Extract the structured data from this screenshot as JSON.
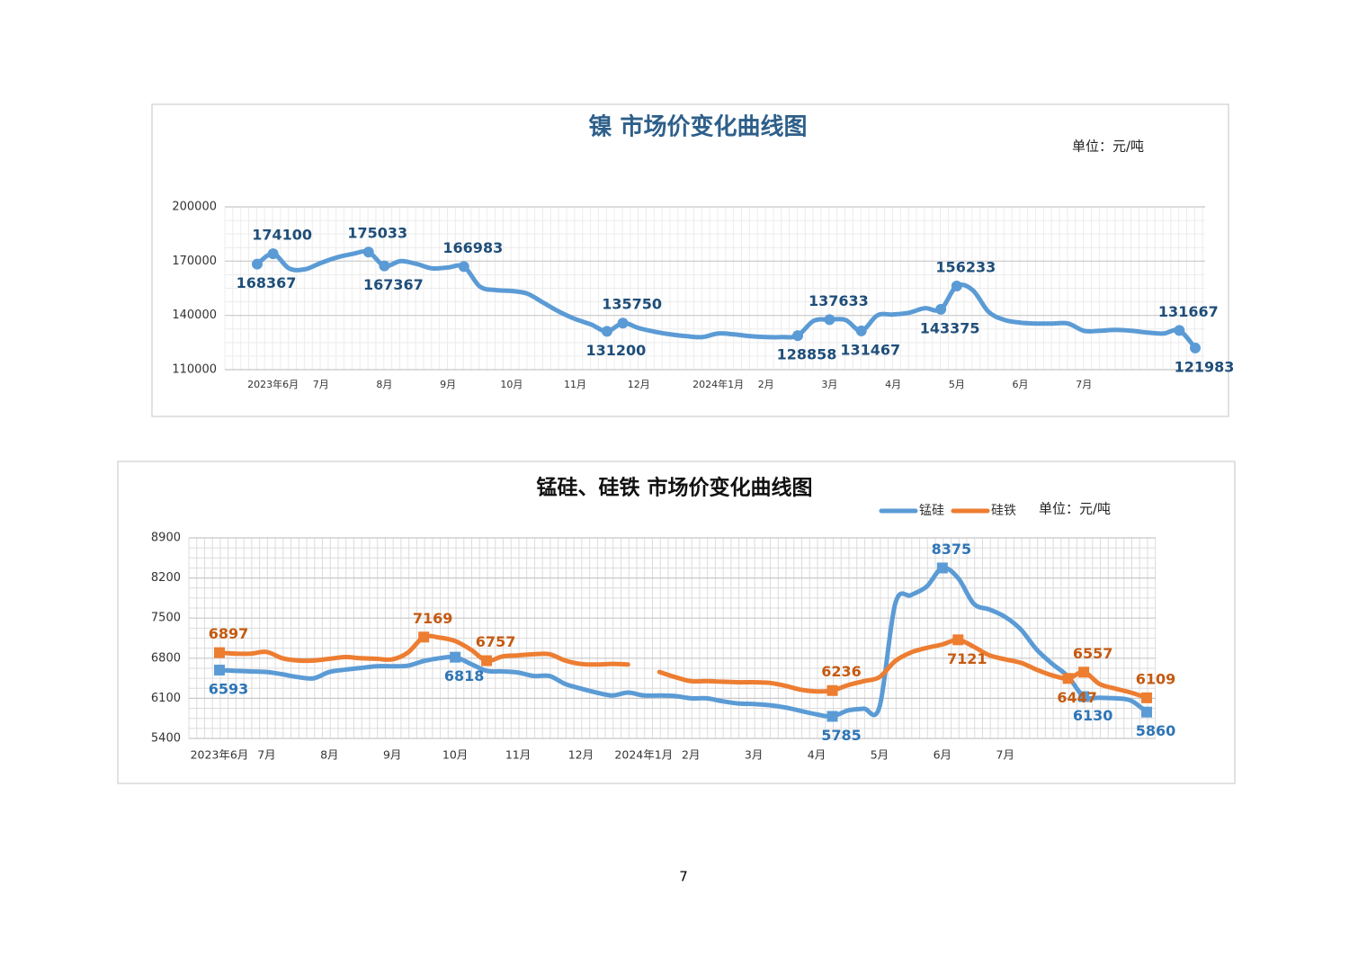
{
  "chart_data": [
    {
      "type": "line",
      "title": "镍  市场价变化曲线图",
      "unit": "单位：元/吨",
      "color": "#5b9bd5",
      "grid": true,
      "ylim": [
        110000,
        200000
      ],
      "yticks": [
        110000,
        140000,
        170000,
        200000
      ],
      "categories": [
        null,
        "2023年6月",
        null,
        null,
        "7月",
        null,
        null,
        null,
        "8月",
        null,
        null,
        null,
        "9月",
        null,
        null,
        null,
        "10月",
        null,
        null,
        null,
        "11月",
        null,
        null,
        null,
        "12月",
        null,
        null,
        null,
        null,
        "2024年1月",
        null,
        null,
        "2月",
        null,
        null,
        null,
        "3月",
        null,
        null,
        null,
        "4月",
        null,
        null,
        null,
        "5月",
        null,
        null,
        null,
        "6月",
        null,
        null,
        null,
        "7月",
        null,
        null,
        null,
        null,
        null,
        null,
        null
      ],
      "values": [
        168367,
        174100,
        166000,
        165500,
        169000,
        172000,
        174000,
        175033,
        167367,
        170000,
        168500,
        166000,
        166500,
        166983,
        156000,
        154000,
        153500,
        152000,
        147000,
        142000,
        138000,
        135000,
        131200,
        135750,
        133000,
        131000,
        129500,
        128500,
        128000,
        130000,
        129500,
        128500,
        128000,
        128000,
        128858,
        137000,
        137633,
        137500,
        131467,
        140000,
        140500,
        141500,
        144000,
        143375,
        156233,
        154000,
        142000,
        137500,
        136000,
        135500,
        135500,
        135500,
        131500,
        131500,
        132000,
        131500,
        130500,
        130000,
        131667,
        121983
      ],
      "value_labels": [
        "168367",
        "174100",
        null,
        null,
        null,
        null,
        null,
        "175033",
        "167367",
        null,
        null,
        null,
        null,
        "166983",
        null,
        null,
        null,
        null,
        null,
        null,
        null,
        null,
        "131200",
        "135750",
        null,
        null,
        null,
        null,
        null,
        null,
        null,
        null,
        null,
        null,
        "128858",
        null,
        "137633",
        null,
        "131467",
        null,
        null,
        null,
        null,
        "143375",
        "156233",
        null,
        null,
        null,
        null,
        null,
        null,
        null,
        null,
        null,
        null,
        null,
        null,
        null,
        "131667",
        "121983"
      ]
    },
    {
      "type": "line",
      "title": "锰硅、硅铁  市场价变化曲线图",
      "unit": "单位：元/吨",
      "grid": true,
      "legend": "top-right",
      "ylim": [
        5400,
        8900
      ],
      "yticks": [
        5400,
        6100,
        6800,
        7500,
        8200,
        8900
      ],
      "categories": [
        "2023年6月",
        null,
        null,
        "7月",
        null,
        null,
        null,
        "8月",
        null,
        null,
        null,
        "9月",
        null,
        null,
        null,
        "10月",
        null,
        null,
        null,
        "11月",
        null,
        null,
        null,
        "12月",
        null,
        null,
        null,
        "2024年1月",
        null,
        null,
        "2月",
        null,
        null,
        null,
        "3月",
        null,
        null,
        null,
        "4月",
        null,
        null,
        null,
        "5月",
        null,
        null,
        null,
        "6月",
        null,
        null,
        null,
        "7月",
        null,
        null,
        null,
        null,
        null,
        null,
        null,
        null,
        null
      ],
      "series": [
        {
          "name": "锰硅",
          "color": "#5b9bd5",
          "label_color": "#2e75b6",
          "values": [
            6593,
            6580,
            6570,
            6560,
            6520,
            6470,
            6450,
            6560,
            6600,
            6630,
            6660,
            6660,
            6670,
            6750,
            6800,
            6818,
            6700,
            6580,
            6570,
            6550,
            6490,
            6490,
            6350,
            6270,
            6200,
            6150,
            6200,
            6150,
            6150,
            6140,
            6100,
            6100,
            6050,
            6010,
            6000,
            5980,
            5940,
            5880,
            5820,
            5785,
            5890,
            5920,
            5950,
            7750,
            7900,
            8050,
            8375,
            8200,
            7750,
            7650,
            7520,
            7300,
            6950,
            6700,
            6480,
            6130,
            6110,
            6100,
            6060,
            5860
          ],
          "value_labels": [
            "6593",
            null,
            null,
            null,
            null,
            null,
            null,
            null,
            null,
            null,
            null,
            null,
            null,
            null,
            null,
            "6818",
            null,
            null,
            null,
            null,
            null,
            null,
            null,
            null,
            null,
            null,
            null,
            null,
            null,
            null,
            null,
            null,
            null,
            null,
            null,
            null,
            null,
            null,
            null,
            "5785",
            null,
            null,
            null,
            null,
            null,
            null,
            "8375",
            null,
            null,
            null,
            null,
            null,
            null,
            null,
            null,
            "6130",
            null,
            null,
            null,
            "5860"
          ]
        },
        {
          "name": "硅铁",
          "color": "#ed7d31",
          "label_color": "#c55a11",
          "values": [
            6897,
            6880,
            6880,
            6910,
            6800,
            6760,
            6760,
            6790,
            6820,
            6800,
            6790,
            6780,
            6900,
            7169,
            7160,
            7100,
            6950,
            6757,
            6830,
            6850,
            6870,
            6870,
            6760,
            6700,
            6690,
            6700,
            6690,
            null,
            6560,
            6470,
            6400,
            6400,
            6390,
            6380,
            6380,
            6370,
            6320,
            6250,
            6220,
            6236,
            6330,
            6400,
            6470,
            6750,
            6900,
            6980,
            7040,
            7121,
            7000,
            6850,
            6780,
            6720,
            6600,
            6500,
            6447,
            6557,
            6350,
            6270,
            6200,
            6109
          ],
          "value_labels": [
            "6897",
            null,
            null,
            null,
            null,
            null,
            null,
            null,
            null,
            null,
            null,
            null,
            null,
            "7169",
            null,
            null,
            null,
            "6757",
            null,
            null,
            null,
            null,
            null,
            null,
            null,
            null,
            null,
            null,
            null,
            null,
            null,
            null,
            null,
            null,
            null,
            null,
            null,
            null,
            null,
            "6236",
            null,
            null,
            null,
            null,
            null,
            null,
            null,
            "7121",
            null,
            null,
            null,
            null,
            null,
            null,
            "6447",
            "6557",
            null,
            null,
            null,
            "6109"
          ]
        }
      ]
    }
  ],
  "page_number": "7"
}
